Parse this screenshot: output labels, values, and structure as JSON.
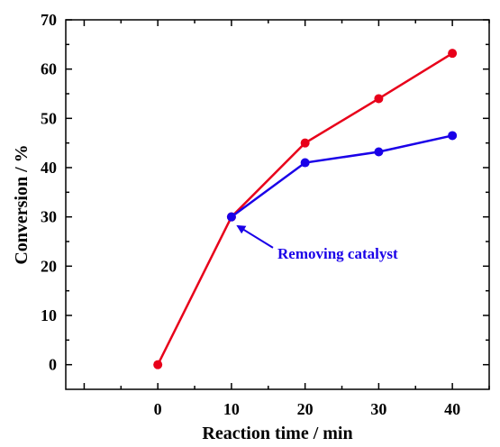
{
  "chart_data": {
    "type": "line",
    "title": "",
    "xlabel": "Reaction time / min",
    "ylabel": "Conversion / %",
    "xlim": [
      -12.5,
      45
    ],
    "ylim": [
      -5,
      70
    ],
    "x_ticks": [
      0,
      10,
      20,
      30,
      40
    ],
    "y_ticks": [
      0,
      10,
      20,
      30,
      40,
      50,
      60,
      70
    ],
    "grid": false,
    "legend": "none",
    "series": [
      {
        "color": "#e8001a",
        "x": [
          0,
          10,
          20,
          30,
          40
        ],
        "y": [
          0,
          30,
          45,
          54,
          63.2
        ]
      },
      {
        "color": "#1a00e8",
        "x": [
          10,
          20,
          30,
          40
        ],
        "y": [
          30,
          41,
          43.2,
          46.5
        ]
      }
    ],
    "annotations": [
      {
        "text": "Removing catalyst",
        "color": "#1a00e8",
        "points_to": {
          "x": 10.5,
          "y": 28.5
        }
      }
    ]
  }
}
